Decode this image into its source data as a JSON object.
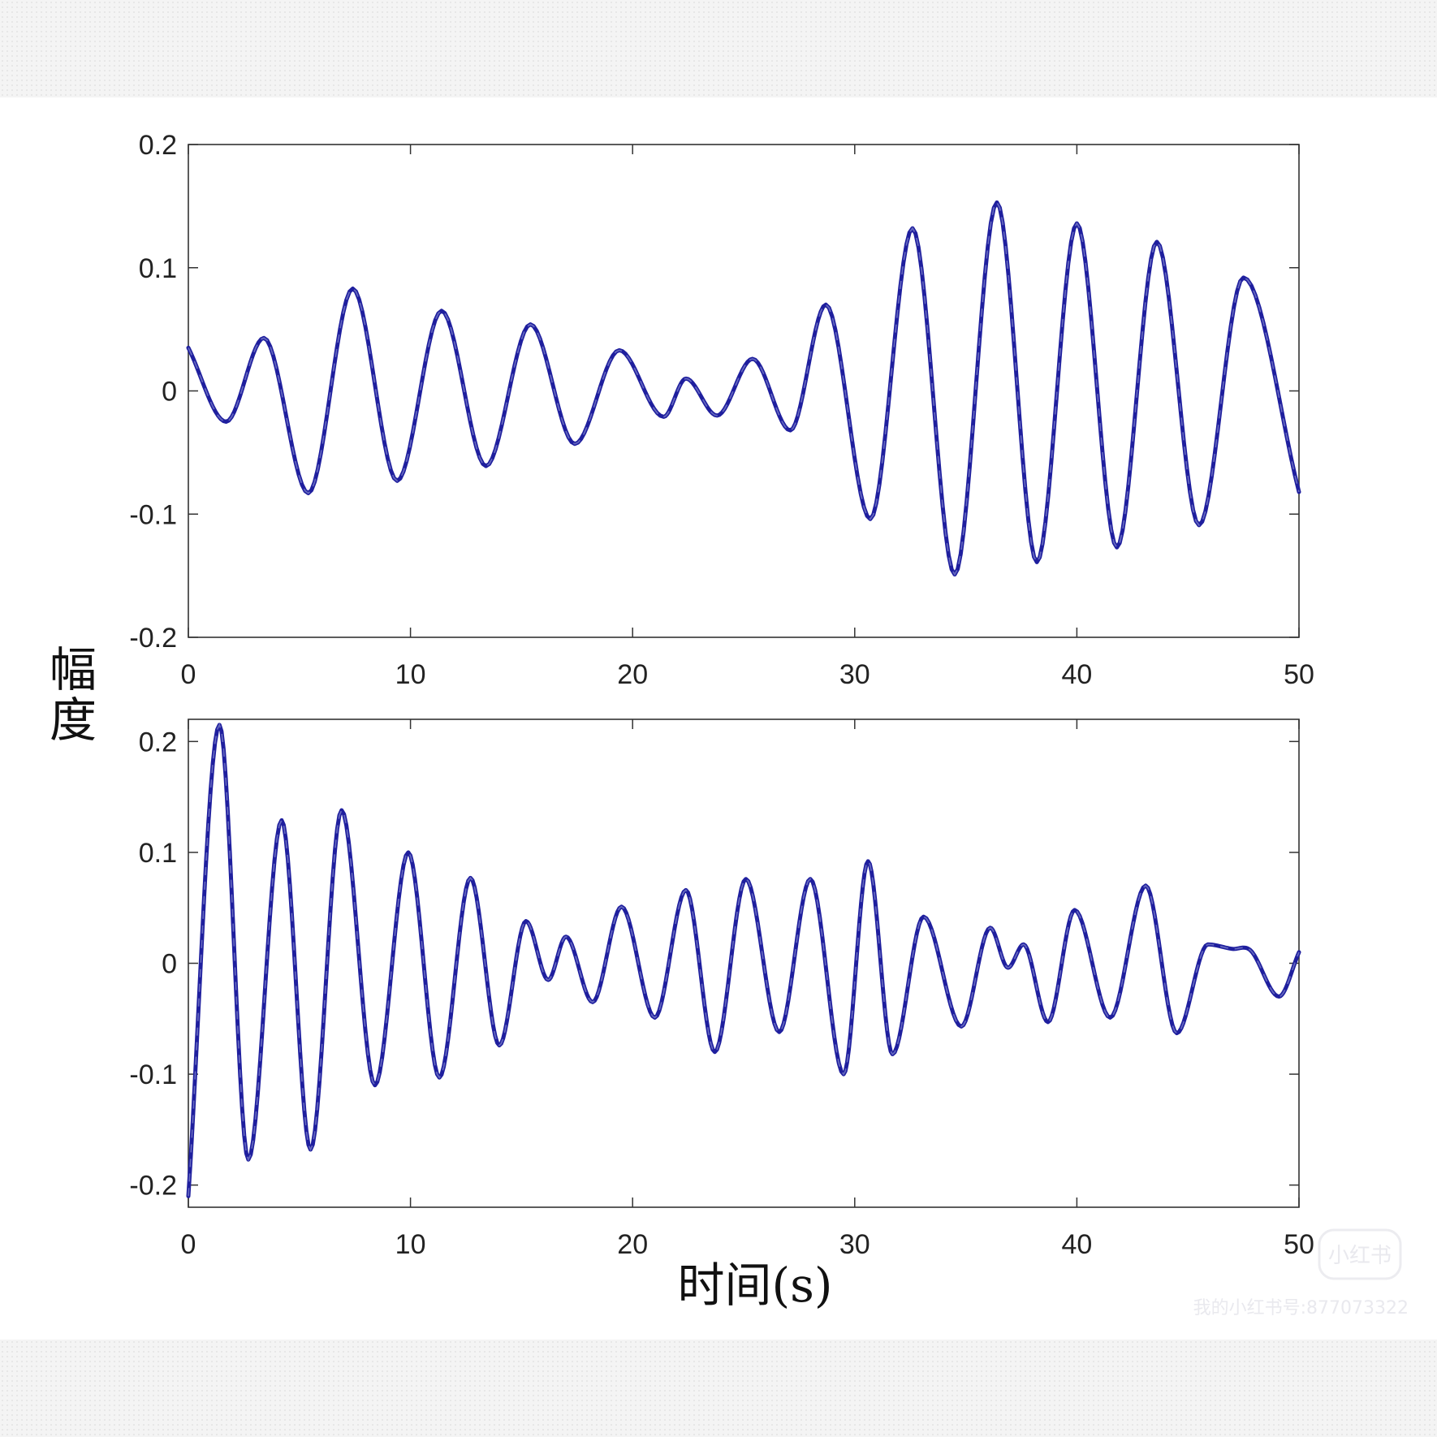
{
  "figure": {
    "ylabel": "幅度",
    "xlabel": "时间(s)",
    "watermark": {
      "logo": "小红书",
      "caption": "我的小红书号:877073322"
    }
  },
  "colors": {
    "line": "#1f1f9e",
    "dash": "#9aa0d8"
  },
  "chart_data": [
    {
      "type": "line",
      "xlim": [
        0,
        50
      ],
      "ylim": [
        -0.2,
        0.2
      ],
      "xticks": [
        0,
        10,
        20,
        30,
        40,
        50
      ],
      "yticks": [
        0.2,
        0.1,
        0,
        -0.1,
        -0.2
      ],
      "xtick_labels": [
        "0",
        "10",
        "20",
        "30",
        "40",
        "50"
      ],
      "ytick_labels": [
        "0.2",
        "0.1",
        "0",
        "-0.1",
        "-0.2"
      ],
      "grid": false,
      "x": [
        0,
        1.7,
        3.4,
        5.4,
        7.4,
        9.4,
        11.4,
        13.4,
        15.4,
        17.4,
        19.4,
        21.4,
        22.4,
        23.8,
        25.4,
        27.1,
        28.7,
        30.7,
        32.6,
        34.5,
        36.4,
        38.2,
        40.0,
        41.8,
        43.6,
        45.5,
        47.5,
        50.0
      ],
      "y": [
        0.035,
        -0.025,
        0.043,
        -0.083,
        0.083,
        -0.073,
        0.065,
        -0.061,
        0.054,
        -0.043,
        0.033,
        -0.021,
        0.01,
        -0.02,
        0.026,
        -0.032,
        0.07,
        -0.104,
        0.132,
        -0.149,
        0.153,
        -0.139,
        0.136,
        -0.127,
        0.121,
        -0.109,
        0.092,
        -0.082
      ]
    },
    {
      "type": "line",
      "xlim": [
        0,
        50
      ],
      "ylim": [
        -0.22,
        0.22
      ],
      "xticks": [
        0,
        10,
        20,
        30,
        40,
        50
      ],
      "yticks": [
        0.2,
        0.1,
        0,
        -0.1,
        -0.2
      ],
      "xtick_labels": [
        "0",
        "10",
        "20",
        "30",
        "40",
        "50"
      ],
      "ytick_labels": [
        "0.2",
        "0.1",
        "0",
        "-0.1",
        "-0.2"
      ],
      "grid": false,
      "x": [
        0,
        1.4,
        2.7,
        4.2,
        5.5,
        6.9,
        8.4,
        9.9,
        11.3,
        12.7,
        14.0,
        15.2,
        16.2,
        17.0,
        18.2,
        19.5,
        21.0,
        22.4,
        23.7,
        25.1,
        26.6,
        28.0,
        29.5,
        30.6,
        31.7,
        33.1,
        34.8,
        36.1,
        36.9,
        37.6,
        38.7,
        39.9,
        41.5,
        43.1,
        44.5,
        45.9,
        47.0,
        47.8,
        49.1,
        50.0
      ],
      "y": [
        -0.21,
        0.215,
        -0.177,
        0.129,
        -0.168,
        0.138,
        -0.11,
        0.1,
        -0.103,
        0.077,
        -0.074,
        0.038,
        -0.015,
        0.024,
        -0.035,
        0.051,
        -0.049,
        0.066,
        -0.08,
        0.076,
        -0.062,
        0.076,
        -0.1,
        0.092,
        -0.082,
        0.042,
        -0.057,
        0.032,
        -0.004,
        0.017,
        -0.053,
        0.048,
        -0.049,
        0.07,
        -0.063,
        0.017,
        0.013,
        0.012,
        -0.03,
        0.01
      ]
    }
  ]
}
